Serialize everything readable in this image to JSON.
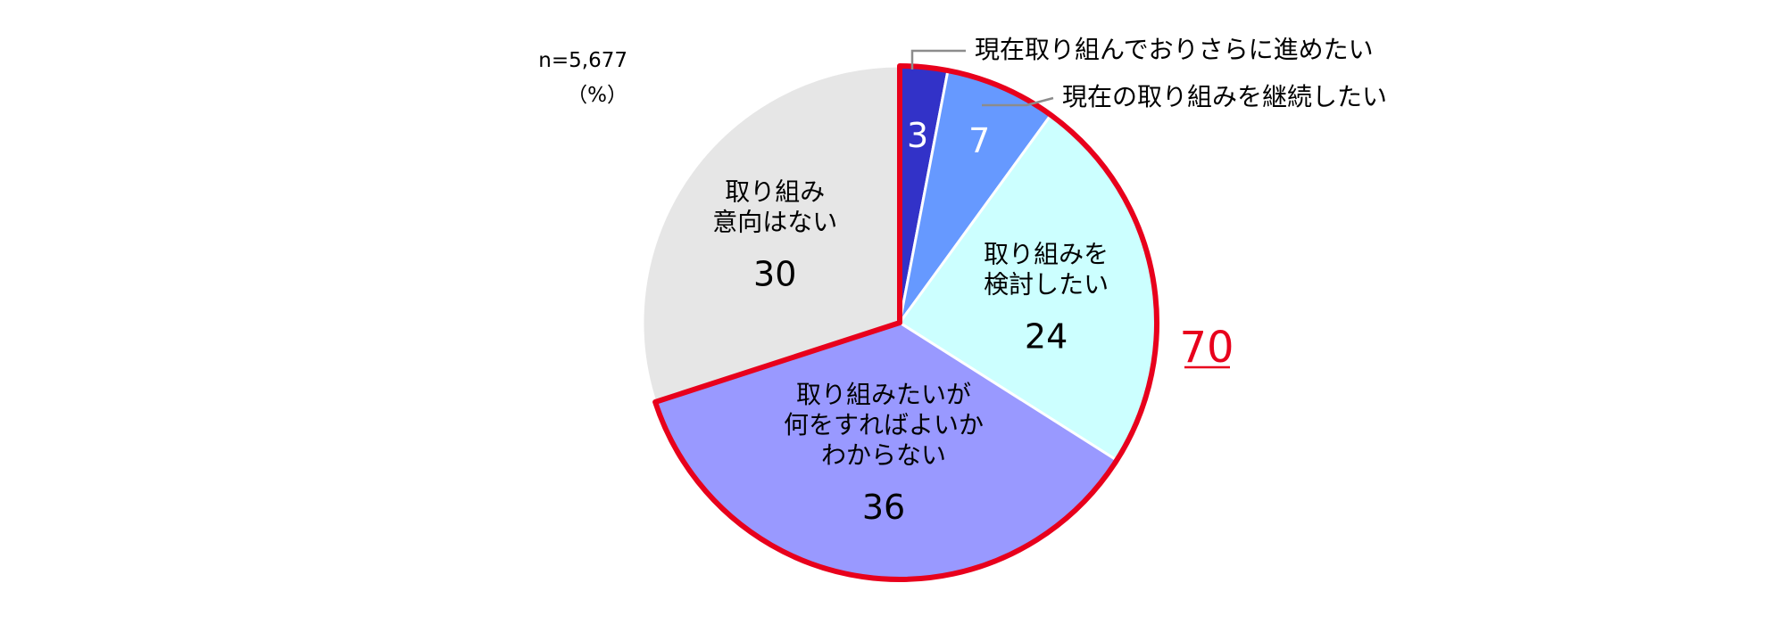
{
  "chart_data": {
    "type": "pie",
    "title": "",
    "n_note": "n=5,677",
    "unit_note": "（%）",
    "slices": [
      {
        "label": "現在取り組んでおりさらに進めたい",
        "value": 3,
        "color": "#3232c8",
        "label_lines": []
      },
      {
        "label": "現在の取り組みを継続したい",
        "value": 7,
        "color": "#6699ff",
        "label_lines": []
      },
      {
        "label": "取り組みを検討したい",
        "value": 24,
        "color": "#ccffff",
        "label_lines": [
          "取り組みを",
          "検討したい"
        ]
      },
      {
        "label": "取り組みたいが何をすればよいかわからない",
        "value": 36,
        "color": "#9999ff",
        "label_lines": [
          "取り組みたいが",
          "何をすればよいか",
          "わからない"
        ]
      },
      {
        "label": "取り組み意向はない",
        "value": 30,
        "color": "#e6e6e6",
        "label_lines": [
          "取り組み",
          "意向はない"
        ]
      }
    ],
    "highlight_total": "70",
    "highlight_color": "#e8001c"
  }
}
